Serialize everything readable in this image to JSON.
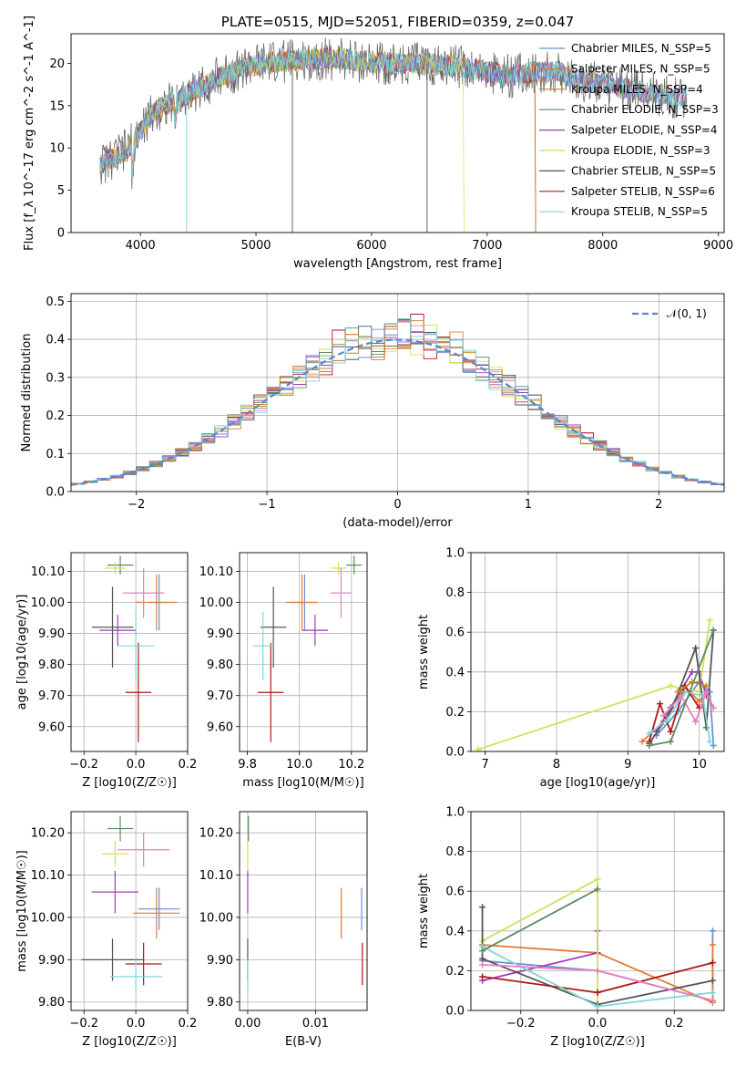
{
  "colors": [
    "#6a8fd8",
    "#e07a36",
    "#c2841f",
    "#5e8a62",
    "#a039b8",
    "#cfe25a",
    "#555555",
    "#b01818",
    "#7fd6d6",
    "#e67fbf"
  ],
  "chart_data": [
    {
      "id": "spectrum",
      "type": "line",
      "title": "PLATE=0515, MJD=52051, FIBERID=0359, z=0.047",
      "xlabel": "wavelength [Angstrom, rest frame]",
      "ylabel": "Flux [f_λ 10^-17 erg cm^-2 s^-1 A^-1]",
      "xlim": [
        3400,
        9050
      ],
      "ylim": [
        0,
        23.5
      ],
      "xticks": [
        4000,
        5000,
        6000,
        7000,
        8000,
        9000
      ],
      "yticks": [
        0,
        5,
        10,
        15,
        20
      ],
      "grid": false,
      "legend_position": "top-right",
      "legend": [
        "Chabrier MILES, N_SSP=5",
        "Salpeter MILES, N_SSP=5",
        "Kroupa MILES, N_SSP=4",
        "Chabrier ELODIE, N_SSP=3",
        "Salpeter ELODIE, N_SSP=4",
        "Kroupa ELODIE, N_SSP=3",
        "Chabrier STELIB, N_SSP=5",
        "Salpeter STELIB, N_SSP=6",
        "Kroupa STELIB, N_SSP=5"
      ],
      "continuum": {
        "x": [
          3650,
          3800,
          3900,
          4000,
          4100,
          4200,
          4300,
          4500,
          4700,
          4900,
          5100,
          5300,
          5500,
          5800,
          6000,
          6200,
          6500,
          6800,
          7000,
          7200,
          7400,
          7600,
          7800,
          8000,
          8200,
          8400,
          8600
        ],
        "y": [
          8,
          9,
          10,
          12,
          14,
          15,
          15.5,
          17,
          18.5,
          19.5,
          20,
          20.3,
          20.5,
          20.5,
          20,
          20,
          20,
          19.5,
          19,
          18.5,
          19,
          19,
          18,
          17.5,
          17,
          16.5,
          16
        ]
      },
      "end_wavelengths": [
        8730,
        8730,
        7420,
        8730,
        8730,
        6800,
        8730,
        7420,
        8730
      ]
    },
    {
      "id": "residuals",
      "type": "bar",
      "xlabel": "(data-model)/error",
      "ylabel": "Normed distribution",
      "xlim": [
        -2.5,
        2.5
      ],
      "ylim": [
        0,
        0.52
      ],
      "xticks": [
        -2,
        -1,
        0,
        1,
        2
      ],
      "yticks": [
        0.0,
        0.1,
        0.2,
        0.3,
        0.4,
        0.5
      ],
      "grid": true,
      "legend_position": "top-right",
      "legend": [
        "𝒩(0, 1)"
      ]
    },
    {
      "id": "age_vs_Z",
      "type": "scatter",
      "xlabel": "Z [log10(Z/Z☉)]",
      "ylabel": "age [log10(age/yr)]",
      "xlim": [
        -0.25,
        0.2
      ],
      "ylim": [
        9.52,
        10.16
      ],
      "xticks": [
        -0.2,
        0.0,
        0.2
      ],
      "xticklabels": [
        "−0.2",
        "0.0",
        "0.2"
      ],
      "yticks": [
        9.6,
        9.7,
        9.8,
        9.9,
        10.0,
        10.1
      ],
      "grid": true,
      "points": [
        {
          "c": 0,
          "x": 0.09,
          "y": 10.0,
          "xe": 0.04,
          "ye": 0.09
        },
        {
          "c": 1,
          "x": 0.08,
          "y": 10.0,
          "xe": 0.08,
          "ye": 0.09
        },
        {
          "c": 3,
          "x": -0.06,
          "y": 10.12,
          "xe": 0.05,
          "ye": 0.03
        },
        {
          "c": 4,
          "x": -0.07,
          "y": 9.91,
          "xe": 0.07,
          "ye": 0.05
        },
        {
          "c": 5,
          "x": -0.08,
          "y": 10.11,
          "xe": 0.04,
          "ye": 0.02
        },
        {
          "c": 6,
          "x": -0.09,
          "y": 9.92,
          "xe": 0.08,
          "ye": 0.13
        },
        {
          "c": 7,
          "x": 0.01,
          "y": 9.71,
          "xe": 0.05,
          "ye": 0.16
        },
        {
          "c": 8,
          "x": 0.0,
          "y": 9.86,
          "xe": 0.07,
          "ye": 0.11
        },
        {
          "c": 9,
          "x": 0.03,
          "y": 10.03,
          "xe": 0.08,
          "ye": 0.08
        }
      ]
    },
    {
      "id": "age_vs_mass",
      "type": "scatter",
      "xlabel": "mass [log10(M/M☉)]",
      "ylabel": "",
      "xlim": [
        9.77,
        10.26
      ],
      "ylim": [
        9.52,
        10.16
      ],
      "xticks": [
        9.8,
        10.0,
        10.2
      ],
      "xticklabels": [
        "9.8",
        "10.0",
        "10.2"
      ],
      "yticks": [
        9.6,
        9.7,
        9.8,
        9.9,
        10.0,
        10.1
      ],
      "grid": true,
      "points": [
        {
          "c": 0,
          "x": 10.02,
          "y": 10.0,
          "xe": 0.05,
          "ye": 0.09
        },
        {
          "c": 1,
          "x": 10.01,
          "y": 10.0,
          "xe": 0.06,
          "ye": 0.09
        },
        {
          "c": 3,
          "x": 10.21,
          "y": 10.12,
          "xe": 0.03,
          "ye": 0.03
        },
        {
          "c": 4,
          "x": 10.06,
          "y": 9.91,
          "xe": 0.05,
          "ye": 0.05
        },
        {
          "c": 5,
          "x": 10.15,
          "y": 10.11,
          "xe": 0.03,
          "ye": 0.02
        },
        {
          "c": 6,
          "x": 9.9,
          "y": 9.92,
          "xe": 0.05,
          "ye": 0.13
        },
        {
          "c": 7,
          "x": 9.89,
          "y": 9.71,
          "xe": 0.05,
          "ye": 0.16
        },
        {
          "c": 8,
          "x": 9.86,
          "y": 9.86,
          "xe": 0.04,
          "ye": 0.11
        },
        {
          "c": 9,
          "x": 10.16,
          "y": 10.03,
          "xe": 0.04,
          "ye": 0.08
        }
      ]
    },
    {
      "id": "weight_vs_age",
      "type": "line",
      "xlabel": "age [log10(age/yr)]",
      "ylabel": "mass weight",
      "xlim": [
        6.8,
        10.35
      ],
      "ylim": [
        0,
        1.0
      ],
      "xticks": [
        7,
        8,
        9,
        10
      ],
      "xticklabels": [
        "7",
        "8",
        "9",
        "10"
      ],
      "yticks": [
        0.0,
        0.2,
        0.4,
        0.6,
        0.8,
        1.0
      ],
      "grid": true,
      "series": [
        {
          "c": 0,
          "x": [
            9.4,
            9.7,
            10.0,
            10.15,
            10.2
          ],
          "y": [
            0.08,
            0.2,
            0.35,
            0.3,
            0.03
          ]
        },
        {
          "c": 1,
          "x": [
            9.2,
            9.5,
            9.8,
            10.0,
            10.1
          ],
          "y": [
            0.05,
            0.15,
            0.33,
            0.25,
            0.3
          ]
        },
        {
          "c": 4,
          "x": [
            9.4,
            9.6,
            9.9,
            10.0,
            10.1
          ],
          "y": [
            0.1,
            0.22,
            0.4,
            0.4,
            0.28
          ]
        },
        {
          "c": 5,
          "x": [
            6.9,
            9.6,
            10.0,
            10.15
          ],
          "y": [
            0.01,
            0.33,
            0.3,
            0.66
          ]
        },
        {
          "c": 6,
          "x": [
            9.3,
            9.6,
            9.95,
            10.1,
            10.2
          ],
          "y": [
            0.04,
            0.2,
            0.52,
            0.12,
            0.61
          ]
        },
        {
          "c": 7,
          "x": [
            9.3,
            9.45,
            9.6,
            9.8,
            10.0
          ],
          "y": [
            0.05,
            0.24,
            0.1,
            0.33,
            0.22
          ]
        },
        {
          "c": 8,
          "x": [
            9.3,
            9.55,
            9.8,
            10.05,
            10.15
          ],
          "y": [
            0.09,
            0.16,
            0.3,
            0.28,
            0.05
          ]
        },
        {
          "c": 9,
          "x": [
            9.5,
            9.75,
            9.95,
            10.1,
            10.2
          ],
          "y": [
            0.18,
            0.28,
            0.15,
            0.3,
            0.22
          ]
        },
        {
          "c": 3,
          "x": [
            9.3,
            9.6,
            10.2
          ],
          "y": [
            0.03,
            0.05,
            0.61
          ]
        },
        {
          "c": 2,
          "x": [
            9.7,
            9.9,
            10.1
          ],
          "y": [
            0.3,
            0.35,
            0.33
          ]
        }
      ]
    },
    {
      "id": "mass_vs_Z",
      "type": "scatter",
      "xlabel": "Z [log10(Z/Z☉)]",
      "ylabel": "mass [log10(M/M☉)]",
      "xlim": [
        -0.25,
        0.2
      ],
      "ylim": [
        9.78,
        10.25
      ],
      "xticks": [
        -0.2,
        0.0,
        0.2
      ],
      "xticklabels": [
        "−0.2",
        "0.0",
        "0.2"
      ],
      "yticks": [
        9.8,
        9.9,
        10.0,
        10.1,
        10.2
      ],
      "grid": true,
      "points": [
        {
          "c": 0,
          "x": 0.09,
          "y": 10.02,
          "xe": 0.08,
          "ye": 0.05
        },
        {
          "c": 1,
          "x": 0.08,
          "y": 10.01,
          "xe": 0.09,
          "ye": 0.06
        },
        {
          "c": 3,
          "x": -0.06,
          "y": 10.21,
          "xe": 0.05,
          "ye": 0.03
        },
        {
          "c": 4,
          "x": -0.08,
          "y": 10.06,
          "xe": 0.09,
          "ye": 0.05
        },
        {
          "c": 5,
          "x": -0.08,
          "y": 10.15,
          "xe": 0.05,
          "ye": 0.03
        },
        {
          "c": 6,
          "x": -0.09,
          "y": 9.9,
          "xe": 0.12,
          "ye": 0.05
        },
        {
          "c": 7,
          "x": 0.03,
          "y": 9.89,
          "xe": 0.07,
          "ye": 0.05
        },
        {
          "c": 8,
          "x": 0.0,
          "y": 9.86,
          "xe": 0.1,
          "ye": 0.04
        },
        {
          "c": 9,
          "x": 0.03,
          "y": 10.16,
          "xe": 0.1,
          "ye": 0.04
        }
      ]
    },
    {
      "id": "mass_vs_ebv",
      "type": "scatter",
      "xlabel": "E(B-V)",
      "ylabel": "",
      "xlim": [
        -0.0012,
        0.0176
      ],
      "ylim": [
        9.78,
        10.25
      ],
      "xticks": [
        0.0,
        0.01
      ],
      "xticklabels": [
        "0.00",
        "0.01"
      ],
      "yticks": [
        9.8,
        9.9,
        10.0,
        10.1,
        10.2
      ],
      "grid": true,
      "points": [
        {
          "c": 0,
          "x": 0.0168,
          "y": 10.02,
          "xe": 0,
          "ye": 0.05
        },
        {
          "c": 1,
          "x": 0.0138,
          "y": 10.01,
          "xe": 0,
          "ye": 0.06
        },
        {
          "c": 3,
          "x": 0.0001,
          "y": 10.21,
          "xe": 0,
          "ye": 0.03
        },
        {
          "c": 4,
          "x": 0.0,
          "y": 10.06,
          "xe": 0,
          "ye": 0.05
        },
        {
          "c": 5,
          "x": 0.0,
          "y": 10.15,
          "xe": 0,
          "ye": 0.03
        },
        {
          "c": 6,
          "x": 0.0,
          "y": 9.9,
          "xe": 0,
          "ye": 0.05
        },
        {
          "c": 7,
          "x": 0.0169,
          "y": 9.89,
          "xe": 0,
          "ye": 0.05
        },
        {
          "c": 8,
          "x": 0.0,
          "y": 9.86,
          "xe": 0,
          "ye": 0.04
        }
      ]
    },
    {
      "id": "weight_vs_Z",
      "type": "line",
      "xlabel": "Z [log10(Z/Z☉)]",
      "ylabel": "mass weight",
      "xlim": [
        -0.33,
        0.33
      ],
      "ylim": [
        0,
        1.0
      ],
      "xticks": [
        -0.2,
        0.0,
        0.2
      ],
      "xticklabels": [
        "−0.2",
        "0.0",
        "0.2"
      ],
      "yticks": [
        0.0,
        0.2,
        0.4,
        0.6,
        0.8,
        1.0
      ],
      "grid": true,
      "series": [
        {
          "c": 0,
          "x": [
            -0.3,
            0.0,
            0.3,
            0.3
          ],
          "y": [
            0.25,
            0.2,
            0.05,
            0.4
          ]
        },
        {
          "c": 1,
          "x": [
            -0.3,
            0.0,
            0.3,
            0.3
          ],
          "y": [
            0.33,
            0.29,
            0.04,
            0.33
          ]
        },
        {
          "c": 4,
          "x": [
            -0.3,
            0.0,
            0.0
          ],
          "y": [
            0.15,
            0.29,
            0.4
          ]
        },
        {
          "c": 5,
          "x": [
            -0.3,
            0.0,
            0.0
          ],
          "y": [
            0.35,
            0.66,
            0.0
          ]
        },
        {
          "c": 6,
          "x": [
            -0.3,
            -0.3,
            0.0,
            0.3
          ],
          "y": [
            0.52,
            0.26,
            0.03,
            0.15
          ]
        },
        {
          "c": 7,
          "x": [
            -0.3,
            0.0,
            0.3
          ],
          "y": [
            0.17,
            0.09,
            0.24
          ]
        },
        {
          "c": 8,
          "x": [
            -0.3,
            0.0,
            0.3
          ],
          "y": [
            0.32,
            0.02,
            0.09
          ]
        },
        {
          "c": 9,
          "x": [
            -0.3,
            0.0,
            0.3
          ],
          "y": [
            0.23,
            0.2,
            0.05
          ]
        },
        {
          "c": 3,
          "x": [
            -0.3,
            0.0
          ],
          "y": [
            0.3,
            0.61
          ]
        }
      ]
    }
  ]
}
